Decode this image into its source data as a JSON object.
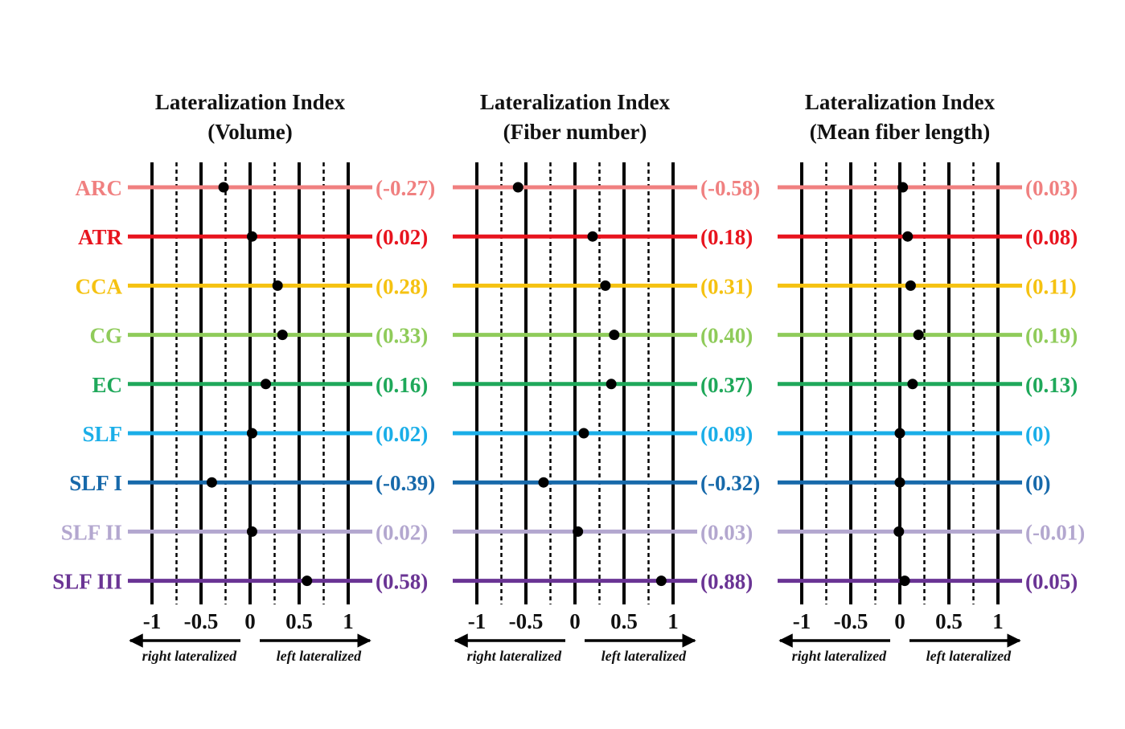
{
  "chart_data": [
    {
      "type": "dot",
      "title_line1": "Lateralization Index",
      "title_line2": "(Volume)",
      "categories": [
        "ARC",
        "ATR",
        "CCA",
        "CG",
        "EC",
        "SLF",
        "SLF I",
        "SLF II",
        "SLF III"
      ],
      "values": [
        -0.27,
        0.02,
        0.28,
        0.33,
        0.16,
        0.02,
        -0.39,
        0.02,
        0.58
      ],
      "value_labels": [
        "(-0.27)",
        "(0.02)",
        "(0.28)",
        "(0.33)",
        "(0.16)",
        "(0.02)",
        "(-0.39)",
        "(0.02)",
        "(0.58)"
      ],
      "xlim": [
        -1,
        1
      ],
      "xticks": [
        -1,
        -0.5,
        0,
        0.5,
        1
      ],
      "xtick_labels": [
        "-1",
        "-0.5",
        "0",
        "0.5",
        "1"
      ],
      "minor_gridlines": [
        -0.75,
        -0.25,
        0.25,
        0.75
      ],
      "left_arrow_label": "right lateralized",
      "right_arrow_label": "left lateralized",
      "show_category_labels": true
    },
    {
      "type": "dot",
      "title_line1": "Lateralization Index",
      "title_line2": "(Fiber number)",
      "categories": [
        "ARC",
        "ATR",
        "CCA",
        "CG",
        "EC",
        "SLF",
        "SLF I",
        "SLF II",
        "SLF III"
      ],
      "values": [
        -0.58,
        0.18,
        0.31,
        0.4,
        0.37,
        0.09,
        -0.32,
        0.03,
        0.88
      ],
      "value_labels": [
        "(-0.58)",
        "(0.18)",
        "(0.31)",
        "(0.40)",
        "(0.37)",
        "(0.09)",
        "(-0.32)",
        "(0.03)",
        "(0.88)"
      ],
      "xlim": [
        -1,
        1
      ],
      "xticks": [
        -1,
        -0.5,
        0,
        0.5,
        1
      ],
      "xtick_labels": [
        "-1",
        "-0.5",
        "0",
        "0.5",
        "1"
      ],
      "minor_gridlines": [
        -0.75,
        -0.25,
        0.25,
        0.75
      ],
      "left_arrow_label": "right lateralized",
      "right_arrow_label": "left lateralized",
      "show_category_labels": false
    },
    {
      "type": "dot",
      "title_line1": "Lateralization Index",
      "title_line2": "(Mean fiber length)",
      "categories": [
        "ARC",
        "ATR",
        "CCA",
        "CG",
        "EC",
        "SLF",
        "SLF I",
        "SLF II",
        "SLF III"
      ],
      "values": [
        0.03,
        0.08,
        0.11,
        0.19,
        0.13,
        0,
        0,
        -0.01,
        0.05
      ],
      "value_labels": [
        "(0.03)",
        "(0.08)",
        "(0.11)",
        "(0.19)",
        "(0.13)",
        "(0)",
        "(0)",
        "(-0.01)",
        "(0.05)"
      ],
      "xlim": [
        -1,
        1
      ],
      "xticks": [
        -1,
        -0.5,
        0,
        0.5,
        1
      ],
      "xtick_labels": [
        "-1",
        "-0.5",
        "0",
        "0.5",
        "1"
      ],
      "minor_gridlines": [
        -0.75,
        -0.25,
        0.25,
        0.75
      ],
      "left_arrow_label": "right lateralized",
      "right_arrow_label": "left lateralized",
      "show_category_labels": false
    }
  ],
  "tract_colors": {
    "ARC": "#F08080",
    "ATR": "#E8141E",
    "CCA": "#F5C211",
    "CG": "#8FCB5A",
    "EC": "#1FA85A",
    "SLF": "#1AAEE8",
    "SLF I": "#1769AA",
    "SLF II": "#B3A7CF",
    "SLF III": "#6A3494"
  },
  "dot_color": "#000000",
  "grid_color": "#000000"
}
